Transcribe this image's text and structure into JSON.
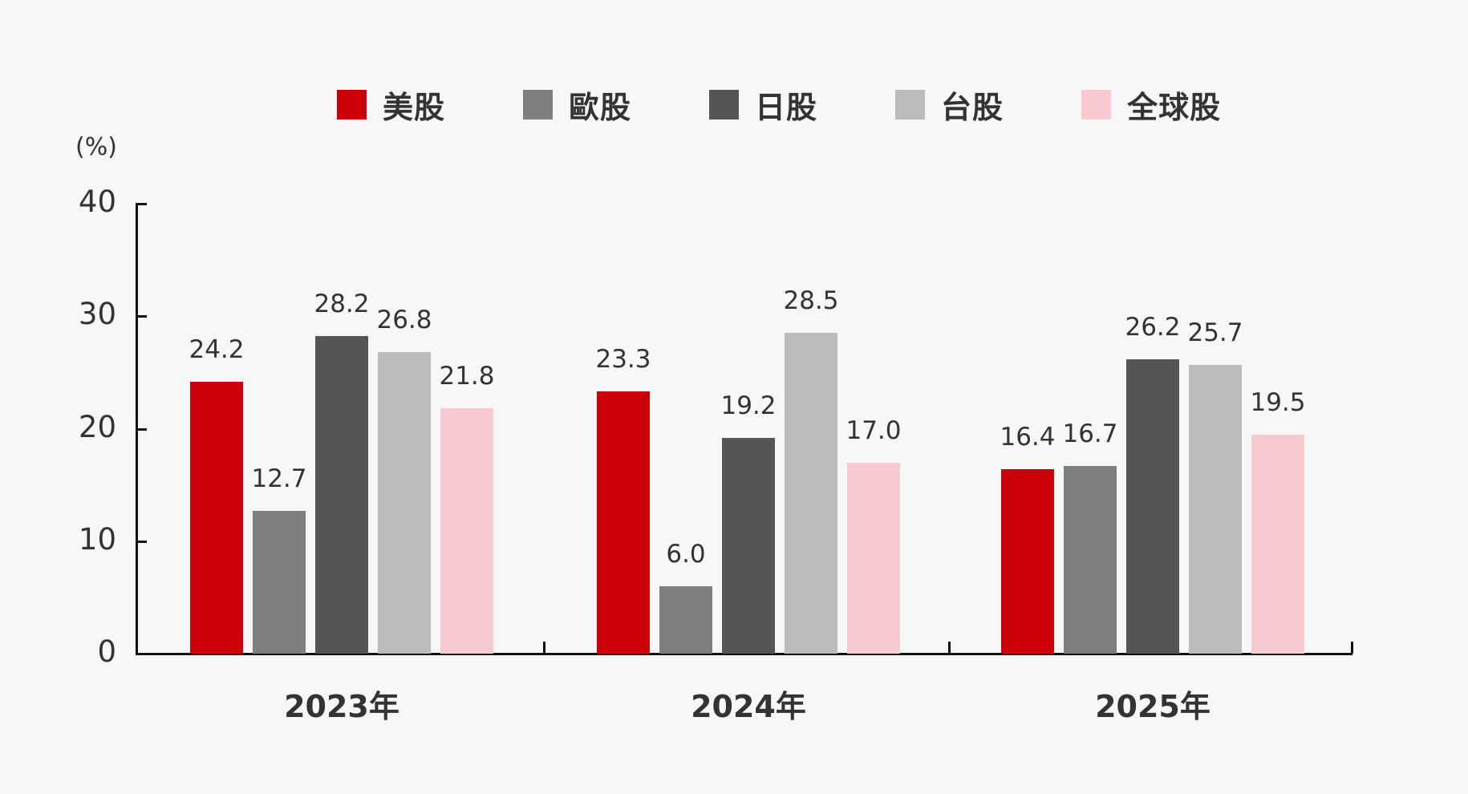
{
  "chart_data": {
    "type": "bar",
    "title": "",
    "xlabel": "",
    "ylabel": "(%)",
    "ylim": [
      0,
      40
    ],
    "yticks": [
      "0",
      "10",
      "20",
      "30",
      "40"
    ],
    "categories": [
      "2023年",
      "2024年",
      "2025年"
    ],
    "series": [
      {
        "name": "美股",
        "color": "#cc0008",
        "values": [
          24.2,
          23.3,
          16.4
        ],
        "labels": [
          "24.2",
          "23.3",
          "16.4"
        ]
      },
      {
        "name": "歐股",
        "color": "#7f7f7f",
        "values": [
          12.7,
          6.0,
          16.7
        ],
        "labels": [
          "12.7",
          "6.0",
          "16.7"
        ]
      },
      {
        "name": "日股",
        "color": "#555555",
        "values": [
          28.2,
          19.2,
          26.2
        ],
        "labels": [
          "28.2",
          "19.2",
          "26.2"
        ]
      },
      {
        "name": "台股",
        "color": "#bbbbbb",
        "values": [
          26.8,
          28.5,
          25.7
        ],
        "labels": [
          "26.8",
          "28.5",
          "25.7"
        ]
      },
      {
        "name": "全球股",
        "color": "#f8c9ce",
        "values": [
          21.8,
          17.0,
          19.5
        ],
        "labels": [
          "21.8",
          "17.0",
          "19.5"
        ]
      }
    ],
    "legend_position": "top",
    "grid": false
  }
}
